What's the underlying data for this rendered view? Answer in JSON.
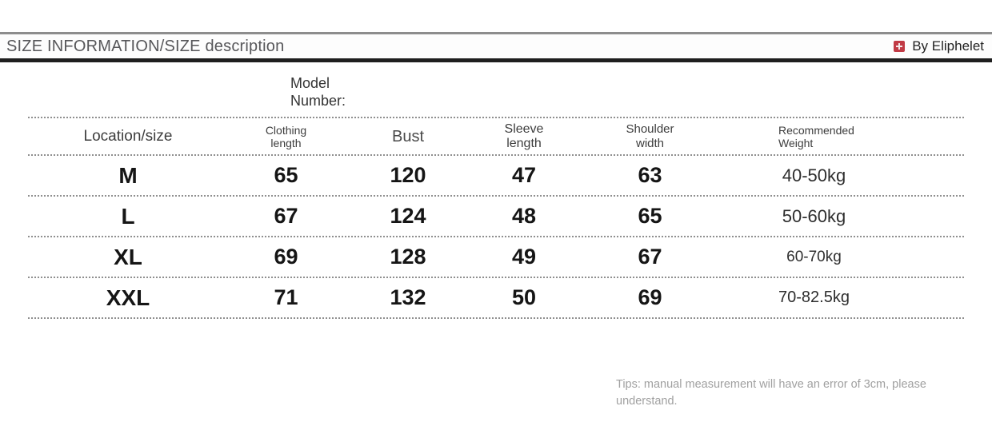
{
  "header": {
    "title": "SIZE INFORMATION/SIZE description",
    "brand_label": "By Eliphelet",
    "brand_icon": "red-plus-square-icon",
    "accent_color": "#c13a45"
  },
  "model_number_label": "Model\nNumber:",
  "table": {
    "columns": [
      "Location/size",
      "Clothing\nlength",
      "Bust",
      "Sleeve\nlength",
      "Shoulder\nwidth",
      "Recommended\nWeight"
    ],
    "rows": [
      {
        "size": "M",
        "clothing_length": "65",
        "bust": "120",
        "sleeve_length": "47",
        "shoulder_width": "63",
        "weight": "40-50kg"
      },
      {
        "size": "L",
        "clothing_length": "67",
        "bust": "124",
        "sleeve_length": "48",
        "shoulder_width": "65",
        "weight": "50-60kg"
      },
      {
        "size": "XL",
        "clothing_length": "69",
        "bust": "128",
        "sleeve_length": "49",
        "shoulder_width": "67",
        "weight": "60-70kg"
      },
      {
        "size": "XXL",
        "clothing_length": "71",
        "bust": "132",
        "sleeve_length": "50",
        "shoulder_width": "69",
        "weight": "70-82.5kg"
      }
    ]
  },
  "tips": "Tips: manual measurement will have an error of 3cm, please understand."
}
